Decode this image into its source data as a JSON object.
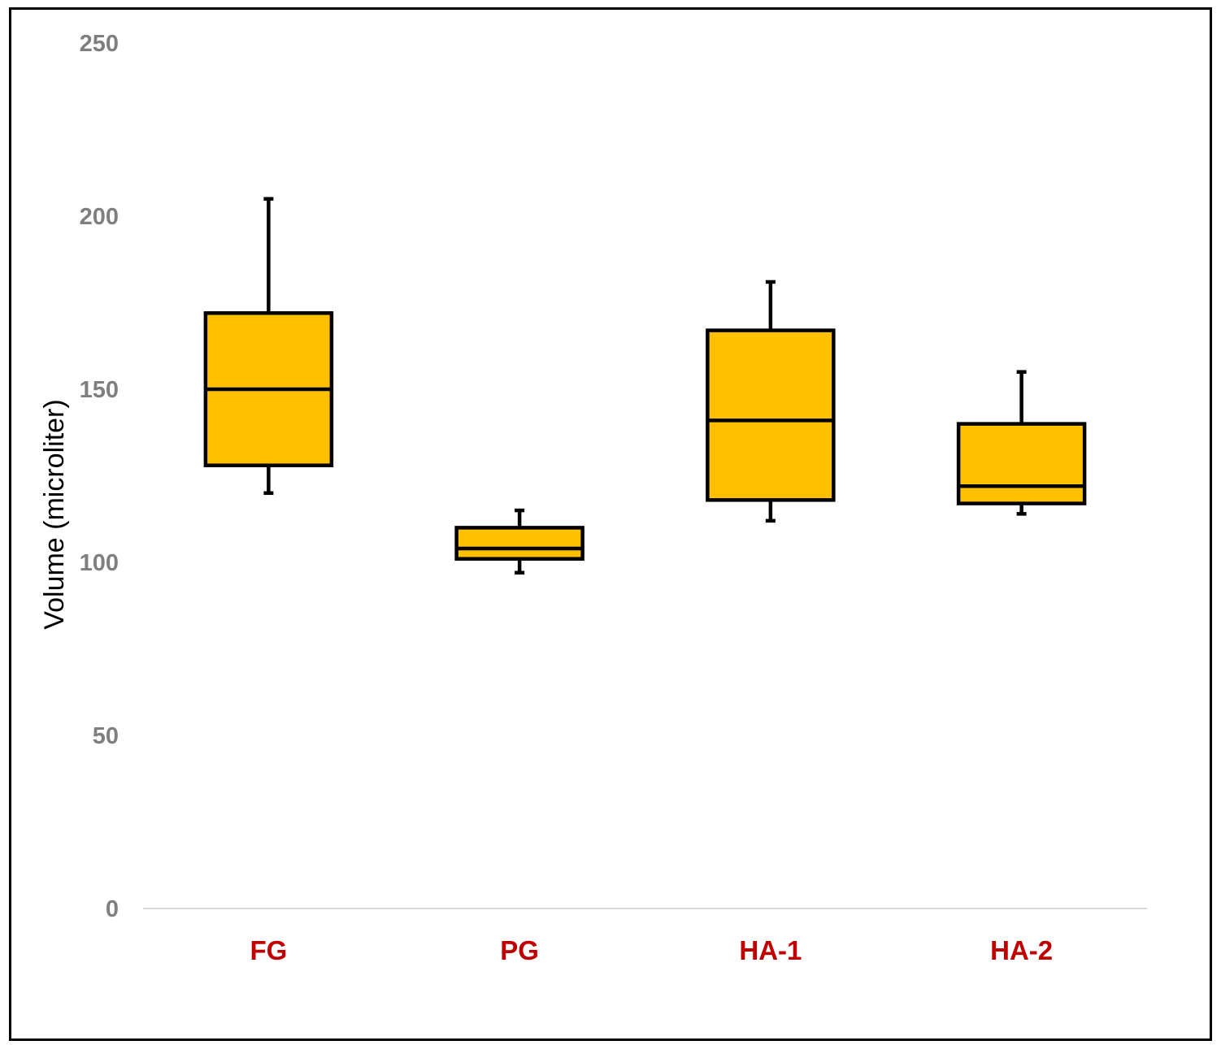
{
  "chart_data": {
    "type": "boxplot",
    "title": "",
    "xlabel": "",
    "ylabel": "Volume (microliter)",
    "ylim": [
      0,
      250
    ],
    "yticks": [
      0,
      50,
      100,
      150,
      200,
      250
    ],
    "grid": false,
    "legend": "none",
    "categories": [
      "FG",
      "PG",
      "HA-1",
      "HA-2"
    ],
    "boxes": [
      {
        "category": "FG",
        "min": 120,
        "q1": 128,
        "median": 150,
        "q3": 172,
        "max": 205
      },
      {
        "category": "PG",
        "min": 97,
        "q1": 101,
        "median": 104,
        "q3": 110,
        "max": 115
      },
      {
        "category": "HA-1",
        "min": 112,
        "q1": 118,
        "median": 141,
        "q3": 167,
        "max": 181
      },
      {
        "category": "HA-2",
        "min": 114,
        "q1": 117,
        "median": 122,
        "q3": 140,
        "max": 155
      }
    ],
    "colors": {
      "box_fill": "#FFC000",
      "box_stroke": "#000000",
      "tick_label": "#7F7F7F",
      "category_label": "#C00000",
      "baseline": "#D9D9D9"
    }
  }
}
